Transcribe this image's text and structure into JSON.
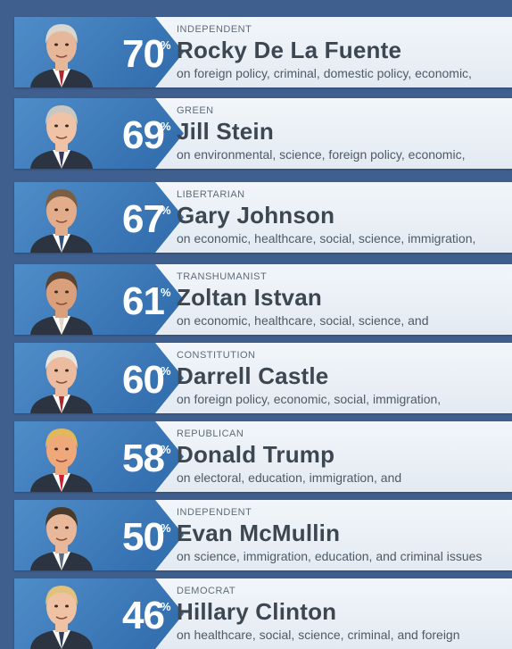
{
  "candidates": [
    {
      "party": "INDEPENDENT",
      "name": "Rocky De La Fuente",
      "percent": "70",
      "issues": "on foreign policy, criminal, domestic policy, economic,",
      "hair": "#d9d6cf",
      "tie": "#b3262b",
      "skin": "#e7b79a"
    },
    {
      "party": "GREEN",
      "name": "Jill Stein",
      "percent": "69",
      "issues": "on environmental, science, foreign policy, economic,",
      "hair": "#c9c7c2",
      "tie": "#3c3a5a",
      "skin": "#f0c3a6"
    },
    {
      "party": "LIBERTARIAN",
      "name": "Gary Johnson",
      "percent": "67",
      "issues": "on economic, healthcare, social, science, immigration,",
      "hair": "#7a5f44",
      "tie": "#2f4f7e",
      "skin": "#e3ad8c"
    },
    {
      "party": "TRANSHUMANIST",
      "name": "Zoltan Istvan",
      "percent": "61",
      "issues": "on economic, healthcare, social, science, and",
      "hair": "#5a4431",
      "tie": "#e0d6c6",
      "skin": "#d9a07b"
    },
    {
      "party": "CONSTITUTION",
      "name": "Darrell Castle",
      "percent": "60",
      "issues": "on foreign policy, economic, social, immigration,",
      "hair": "#e8e6e1",
      "tie": "#a52a2a",
      "skin": "#ecbca0"
    },
    {
      "party": "REPUBLICAN",
      "name": "Donald Trump",
      "percent": "58",
      "issues": "on electoral, education, immigration, and",
      "hair": "#e3b85c",
      "tie": "#cc1f2c",
      "skin": "#efa879"
    },
    {
      "party": "INDEPENDENT",
      "name": "Evan McMullin",
      "percent": "50",
      "issues": "on science, immigration, education, and criminal issues",
      "hair": "#4a3a2c",
      "tie": "#5a6b7c",
      "skin": "#e9b89a"
    },
    {
      "party": "DEMOCRAT",
      "name": "Hillary Clinton",
      "percent": "46",
      "issues": "on healthcare, social, science, criminal, and foreign",
      "hair": "#e0c27c",
      "tie": "#2f3f5a",
      "skin": "#efc2a3"
    }
  ],
  "percent_symbol": "%",
  "colors": {
    "badge": "#3a78b8",
    "background": "#3f5f8f",
    "name_text": "#3d4752"
  }
}
